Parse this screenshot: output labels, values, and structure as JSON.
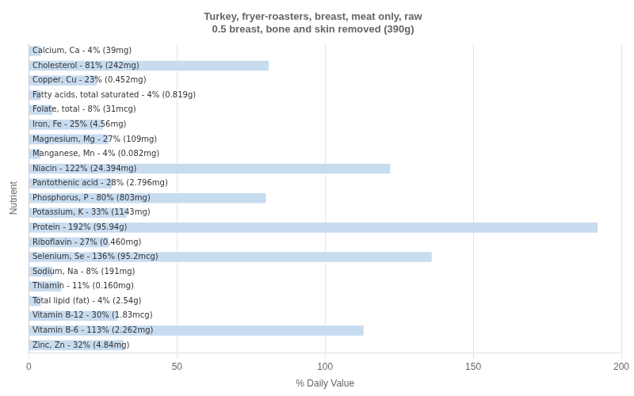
{
  "chart_data": {
    "type": "bar",
    "orientation": "horizontal",
    "title": "Turkey, fryer-roasters, breast, meat only, raw\n0.5 breast, bone and skin removed (390g)",
    "xlabel": "% Daily Value",
    "ylabel": "Nutrient",
    "categories": [
      "Calcium, Ca - 4% (39mg)",
      "Cholesterol - 81% (242mg)",
      "Copper, Cu - 23% (0.452mg)",
      "Fatty acids, total saturated - 4% (0.819g)",
      "Folate, total - 8% (31mcg)",
      "Iron, Fe - 25% (4.56mg)",
      "Magnesium, Mg - 27% (109mg)",
      "Manganese, Mn - 4% (0.082mg)",
      "Niacin - 122% (24.394mg)",
      "Pantothenic acid - 28% (2.796mg)",
      "Phosphorus, P - 80% (803mg)",
      "Potassium, K - 33% (1143mg)",
      "Protein - 192% (95.94g)",
      "Riboflavin - 27% (0.460mg)",
      "Selenium, Se - 136% (95.2mcg)",
      "Sodium, Na - 8% (191mg)",
      "Thiamin - 11% (0.160mg)",
      "Total lipid (fat) - 4% (2.54g)",
      "Vitamin B-12 - 30% (1.83mcg)",
      "Vitamin B-6 - 113% (2.262mg)",
      "Zinc, Zn - 32% (4.84mg)"
    ],
    "values": [
      4,
      81,
      23,
      4,
      8,
      25,
      27,
      4,
      122,
      28,
      80,
      33,
      192,
      27,
      136,
      8,
      11,
      4,
      30,
      113,
      32
    ],
    "color": "#c8dcf0",
    "xlim": [
      0,
      200
    ],
    "xticks": [
      0,
      50,
      100,
      150,
      200
    ],
    "grid": true,
    "tick_labels": "x"
  }
}
